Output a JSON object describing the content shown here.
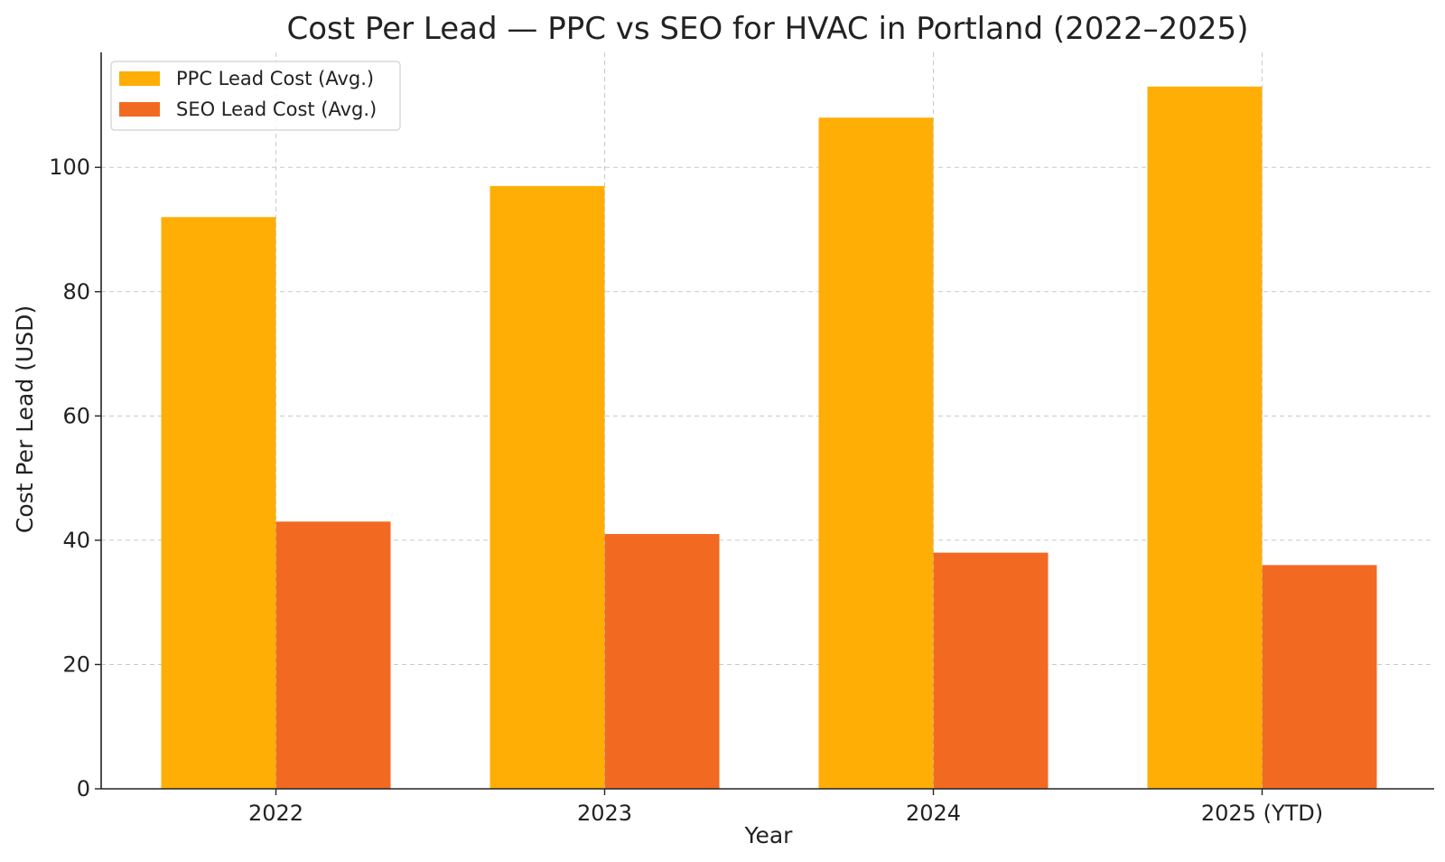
{
  "chart_data": {
    "type": "bar",
    "title": "Cost Per Lead — PPC vs SEO for HVAC in Portland (2022–2025)",
    "xlabel": "Year",
    "ylabel": "Cost Per Lead (USD)",
    "categories": [
      "2022",
      "2023",
      "2024",
      "2025 (YTD)"
    ],
    "series": [
      {
        "name": "PPC Lead Cost (Avg.)",
        "values": [
          92,
          97,
          108,
          113
        ],
        "color": "#FFAE05"
      },
      {
        "name": "SEO Lead Cost (Avg.)",
        "values": [
          43,
          41,
          38,
          36
        ],
        "color": "#F26A22"
      }
    ],
    "ylim": [
      0,
      118.5
    ],
    "yticks": [
      0,
      20,
      40,
      60,
      80,
      100
    ],
    "grid": true,
    "legend_position": "top-left"
  }
}
